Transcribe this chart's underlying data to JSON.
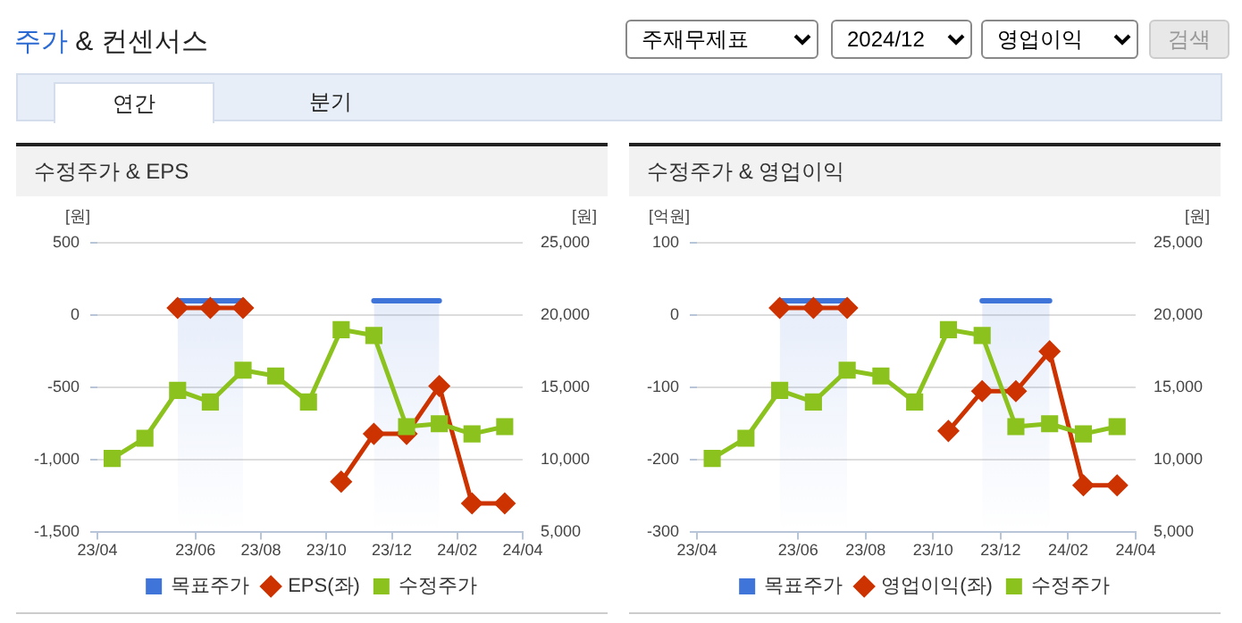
{
  "chart_data": [
    {
      "type": "other",
      "title": "주가 & 컨센서스",
      "annotations": [
        "주재무제표",
        "2024/12",
        "영업이익",
        "검색",
        "연간",
        "분기"
      ]
    },
    {
      "type": "line",
      "title": "수정주가 & EPS",
      "ylabel": "[원]",
      "y2label": "[원]",
      "x": [
        "2023-03-15",
        "2023-04-15",
        "2023-05-15",
        "2023-06-15",
        "2023-07-15",
        "2023-08-15",
        "2023-09-15",
        "2023-10-15",
        "2023-11-15",
        "2023-12-15",
        "2024-01-15",
        "2024-02-15",
        "2024-03-15"
      ],
      "xlim": [
        "2023-03-01",
        "2024-04-01"
      ],
      "xticks": [
        {
          "value": "2023-03-01",
          "label": "23/04"
        },
        {
          "value": "2023-06-01",
          "label": "23/06"
        },
        {
          "value": "2023-08-01",
          "label": "23/08"
        },
        {
          "value": "2023-10-01",
          "label": "23/10"
        },
        {
          "value": "2023-12-01",
          "label": "23/12"
        },
        {
          "value": "2024-02-01",
          "label": "24/02"
        },
        {
          "value": "2024-04-01",
          "label": "24/04"
        }
      ],
      "ylim": [
        -1500,
        500
      ],
      "yticks": [
        {
          "value": -1500,
          "label": "-1,500"
        },
        {
          "value": -1000,
          "label": "-1,000"
        },
        -500,
        0,
        500
      ],
      "y2lim": [
        5000,
        25000
      ],
      "y2ticks": [
        {
          "value": 5000,
          "label": "5,000"
        },
        {
          "value": 10000,
          "label": "10,000"
        },
        {
          "value": 15000,
          "label": "15,000"
        },
        {
          "value": 20000,
          "label": "20,000"
        },
        {
          "value": 25000,
          "label": "25,000"
        }
      ],
      "grid": "y",
      "legend": "bottom",
      "series": [
        {
          "name": "목표주가",
          "type": "area",
          "color": "#3f74d9",
          "axis": "y2",
          "marker": "none",
          "values": [
            null,
            null,
            21000,
            21000,
            21000,
            null,
            null,
            null,
            21000,
            21000,
            21000,
            null,
            null
          ]
        },
        {
          "name": "EPS(좌)",
          "type": "line",
          "color": "#cc3300",
          "marker": "diamond",
          "values": [
            null,
            null,
            50,
            50,
            50,
            null,
            null,
            -1150,
            -820,
            -820,
            -490,
            -1300,
            -1300
          ]
        },
        {
          "name": "수정주가",
          "type": "line",
          "color": "#8cc21e",
          "marker": "square",
          "axis": "y2",
          "values": [
            10100,
            11500,
            14800,
            14000,
            16200,
            15800,
            14000,
            19000,
            18600,
            12300,
            12500,
            11800,
            12300
          ]
        }
      ]
    },
    {
      "type": "line",
      "title": "수정주가 & 영업이익",
      "ylabel": "[억원]",
      "y2label": "[원]",
      "x": [
        "2023-03-15",
        "2023-04-15",
        "2023-05-15",
        "2023-06-15",
        "2023-07-15",
        "2023-08-15",
        "2023-09-15",
        "2023-10-15",
        "2023-11-15",
        "2023-12-15",
        "2024-01-15",
        "2024-02-15",
        "2024-03-15"
      ],
      "xlim": [
        "2023-03-01",
        "2024-04-01"
      ],
      "xticks": [
        {
          "value": "2023-03-01",
          "label": "23/04"
        },
        {
          "value": "2023-06-01",
          "label": "23/06"
        },
        {
          "value": "2023-08-01",
          "label": "23/08"
        },
        {
          "value": "2023-10-01",
          "label": "23/10"
        },
        {
          "value": "2023-12-01",
          "label": "23/12"
        },
        {
          "value": "2024-02-01",
          "label": "24/02"
        },
        {
          "value": "2024-04-01",
          "label": "24/04"
        }
      ],
      "ylim": [
        -300,
        100
      ],
      "yticks": [
        -300,
        -200,
        -100,
        0,
        100
      ],
      "y2lim": [
        5000,
        25000
      ],
      "y2ticks": [
        {
          "value": 5000,
          "label": "5,000"
        },
        {
          "value": 10000,
          "label": "10,000"
        },
        {
          "value": 15000,
          "label": "15,000"
        },
        {
          "value": 20000,
          "label": "20,000"
        },
        {
          "value": 25000,
          "label": "25,000"
        }
      ],
      "grid": "y",
      "legend": "bottom",
      "series": [
        {
          "name": "목표주가",
          "type": "area",
          "color": "#3f74d9",
          "axis": "y2",
          "marker": "none",
          "values": [
            null,
            null,
            21000,
            21000,
            21000,
            null,
            null,
            null,
            21000,
            21000,
            21000,
            null,
            null
          ]
        },
        {
          "name": "영업이익(좌)",
          "type": "line",
          "color": "#cc3300",
          "marker": "diamond",
          "values": [
            null,
            null,
            10,
            10,
            10,
            null,
            null,
            -160,
            -105,
            -105,
            -50,
            -235,
            -235
          ]
        },
        {
          "name": "수정주가",
          "type": "line",
          "color": "#8cc21e",
          "marker": "square",
          "axis": "y2",
          "values": [
            10100,
            11500,
            14800,
            14000,
            16200,
            15800,
            14000,
            19000,
            18600,
            12300,
            12500,
            11800,
            12300
          ]
        }
      ]
    }
  ]
}
